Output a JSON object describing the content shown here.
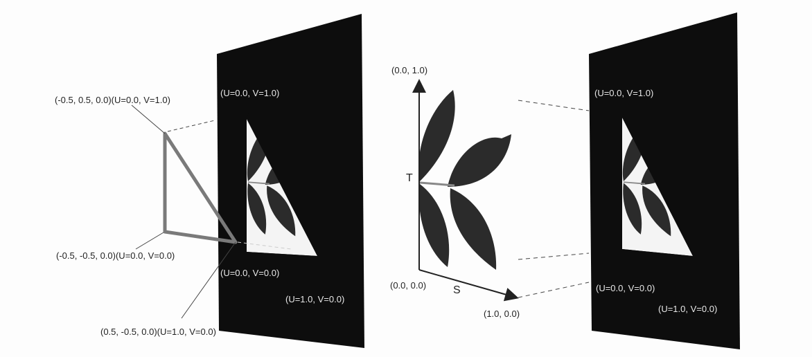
{
  "left_group": {
    "vertex_top": "(-0.5, 0.5, 0.0)(U=0.0, V=1.0)",
    "vertex_bottom_left": "(-0.5, -0.5, 0.0)(U=0.0, V=0.0)",
    "vertex_bottom_right": "(0.5, -0.5, 0.0)(U=1.0, V=0.0)",
    "texture_top_left": "(U=0.0, V=1.0)",
    "texture_bottom_left": "(U=0.0, V=0.0)",
    "texture_bottom_right": "(U=1.0, V=0.0)"
  },
  "middle_group": {
    "axis_top": "(0.0, 1.0)",
    "axis_origin": "(0.0, 0.0)",
    "axis_right": "(1.0, 0.0)",
    "axis_t": "T",
    "axis_s": "S"
  },
  "right_group": {
    "texture_top_left": "(U=0.0, V=1.0)",
    "texture_bottom_left": "(U=0.0, V=0.0)",
    "texture_bottom_right": "(U=1.0, V=0.0)"
  },
  "colors": {
    "panel": "#0d0d0d",
    "triangle_edge": "#7a7a7a",
    "leaf": "#2b2b2b",
    "text": "#222222"
  }
}
